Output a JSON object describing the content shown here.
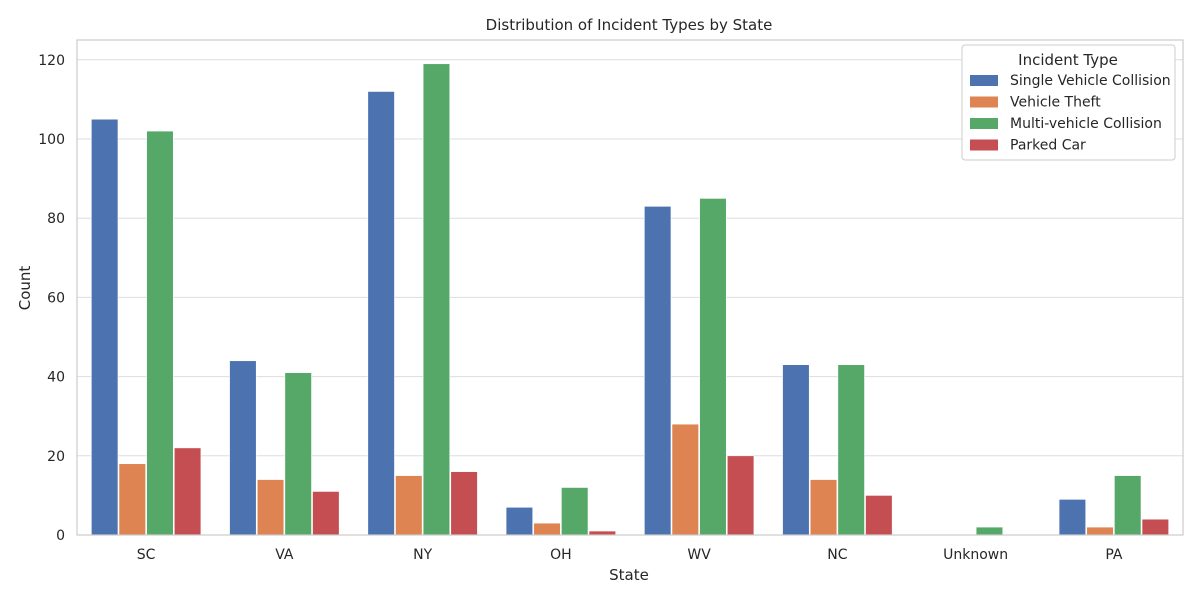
{
  "chart_data": {
    "type": "bar",
    "title": "Distribution of Incident Types by State",
    "xlabel": "State",
    "ylabel": "Count",
    "categories": [
      "SC",
      "VA",
      "NY",
      "OH",
      "WV",
      "NC",
      "Unknown",
      "PA"
    ],
    "ylim": [
      0,
      125
    ],
    "yticks": [
      0,
      20,
      40,
      60,
      80,
      100,
      120
    ],
    "grid": true,
    "legend": {
      "title": "Incident Type",
      "placement": "top-right"
    },
    "series": [
      {
        "name": "Single Vehicle Collision",
        "color": "#4c72b0",
        "values": [
          105,
          44,
          112,
          7,
          83,
          43,
          0,
          9
        ]
      },
      {
        "name": "Vehicle Theft",
        "color": "#dd8452",
        "values": [
          18,
          14,
          15,
          3,
          28,
          14,
          0,
          2
        ]
      },
      {
        "name": "Multi-vehicle Collision",
        "color": "#55a868",
        "values": [
          102,
          41,
          119,
          12,
          85,
          43,
          2,
          15
        ]
      },
      {
        "name": "Parked Car",
        "color": "#c44e52",
        "values": [
          22,
          11,
          16,
          1,
          20,
          10,
          0,
          4
        ]
      }
    ]
  }
}
